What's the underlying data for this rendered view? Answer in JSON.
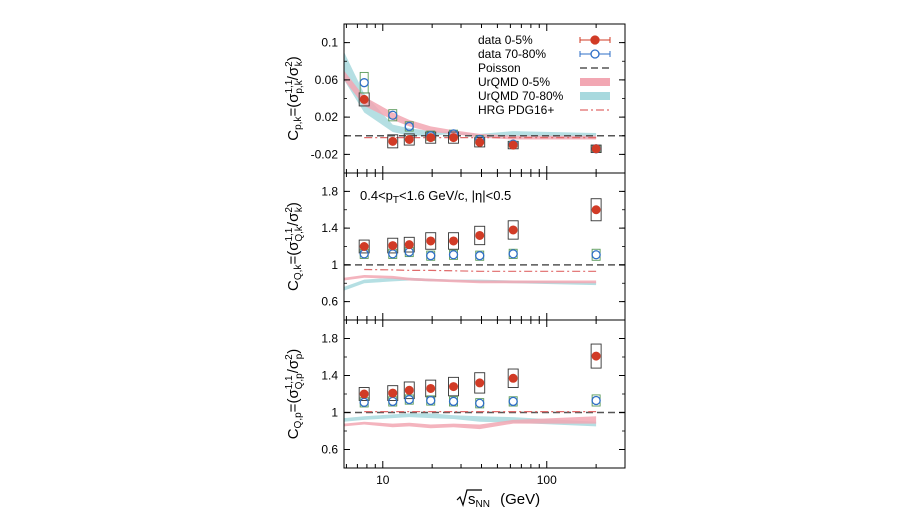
{
  "chart_data": {
    "type": "scatter",
    "x_axis": {
      "scale": "log",
      "xlim": [
        5.8,
        300
      ],
      "tick_labels": [
        "10",
        "100"
      ],
      "label_main": "s",
      "label_sub": "NN",
      "label_unit": "(GeV)"
    },
    "legend": {
      "placement": "top-right",
      "entries": [
        {
          "label": "data 0-5%",
          "kind": "marker-filled",
          "color": "#d13b26"
        },
        {
          "label": "data 70-80%",
          "kind": "marker-open",
          "color": "#2f6fc7"
        },
        {
          "label": "Poisson",
          "kind": "dashed",
          "color": "#555555"
        },
        {
          "label": "UrQMD 0-5%",
          "kind": "band",
          "color": "#f2a7b3"
        },
        {
          "label": "UrQMD 70-80%",
          "kind": "band",
          "color": "#a8d9de"
        },
        {
          "label": "HRG PDG16+",
          "kind": "dashdot",
          "color": "#e06a6a"
        }
      ]
    },
    "annotation": "0.4<p",
    "annotation_sub": "T",
    "annotation_rest": "<1.6 GeV/c, |η|<0.5",
    "panels": [
      {
        "ylabel_main": "C",
        "ylabel_sub": "p,k",
        "ylabel_eq": "=(σ",
        "ylabel_num_sup": "1,1",
        "ylabel_num_sub": "p,k",
        "ylabel_mid": "/σ",
        "ylabel_den_sup": "2",
        "ylabel_den_sub": "k",
        "ylabel_close": ")",
        "ylim": [
          -0.04,
          0.12
        ],
        "yticks": [
          -0.02,
          0.02,
          0.06,
          0.1
        ],
        "ytick_labels": [
          "-0.02",
          "0.02",
          "0.06",
          "0.1"
        ],
        "poisson": 0.0,
        "x": [
          7.7,
          11.5,
          14.5,
          19.6,
          27,
          39,
          62.4,
          200
        ],
        "central": [
          0.039,
          -0.006,
          -0.004,
          -0.002,
          -0.002,
          -0.007,
          -0.01,
          -0.014
        ],
        "central_sys": [
          0.007,
          0.007,
          0.006,
          0.006,
          0.006,
          0.005,
          0.004,
          0.004
        ],
        "peripheral": [
          0.057,
          0.022,
          0.01,
          0.0,
          0.002,
          -0.004,
          -0.009,
          -0.014
        ],
        "peripheral_sys": [
          0.011,
          0.006,
          0.005,
          0.005,
          0.004,
          0.004,
          0.003,
          0.003
        ],
        "urqmd_central": {
          "x": [
            5.8,
            7.7,
            11.5,
            14.5,
            19.6,
            27,
            39,
            62.4,
            200
          ],
          "low": [
            0.06,
            0.032,
            0.017,
            0.01,
            0.004,
            0.002,
            -0.002,
            -0.004,
            -0.004
          ],
          "high": [
            0.07,
            0.042,
            0.025,
            0.017,
            0.01,
            0.006,
            0.002,
            0.0,
            0.0
          ]
        },
        "urqmd_peripheral": {
          "x": [
            5.8,
            7.7,
            11.5,
            14.5,
            19.6,
            27,
            39,
            62.4,
            200
          ],
          "low": [
            0.06,
            0.025,
            0.004,
            0.0,
            0.0,
            0.002,
            -0.002,
            0.0,
            -0.003
          ],
          "high": [
            0.09,
            0.045,
            0.012,
            0.008,
            0.005,
            0.004,
            0.002,
            0.005,
            0.003
          ]
        },
        "hrg": {
          "x": [
            7.7,
            11.5,
            14.5,
            19.6,
            27,
            39,
            62.4,
            200
          ],
          "y": [
            -0.002,
            -0.002,
            -0.002,
            -0.002,
            -0.002,
            -0.002,
            -0.002,
            -0.002
          ]
        }
      },
      {
        "ylabel_main": "C",
        "ylabel_sub": "Q,k",
        "ylabel_eq": "=(σ",
        "ylabel_num_sup": "1,1",
        "ylabel_num_sub": "Q,k",
        "ylabel_mid": "/σ",
        "ylabel_den_sup": "2",
        "ylabel_den_sub": "k",
        "ylabel_close": ")",
        "ylim": [
          0.4,
          2.0
        ],
        "yticks": [
          0.6,
          1.0,
          1.4,
          1.8
        ],
        "ytick_labels": [
          "0.6",
          "1",
          "1.4",
          "1.8"
        ],
        "poisson": 1.0,
        "x": [
          7.7,
          11.5,
          14.5,
          19.6,
          27,
          39,
          62.4,
          200
        ],
        "central": [
          1.2,
          1.21,
          1.22,
          1.26,
          1.26,
          1.32,
          1.38,
          1.6
        ],
        "central_sys": [
          0.07,
          0.08,
          0.08,
          0.09,
          0.09,
          0.1,
          0.1,
          0.12
        ],
        "peripheral": [
          1.12,
          1.12,
          1.14,
          1.1,
          1.11,
          1.1,
          1.12,
          1.11
        ],
        "peripheral_sys": [
          0.05,
          0.05,
          0.05,
          0.05,
          0.05,
          0.05,
          0.05,
          0.06
        ],
        "urqmd_central": {
          "x": [
            5.8,
            7.7,
            11.5,
            14.5,
            19.6,
            27,
            39,
            62.4,
            200
          ],
          "low": [
            0.83,
            0.86,
            0.85,
            0.83,
            0.82,
            0.81,
            0.8,
            0.8,
            0.8
          ],
          "high": [
            0.86,
            0.89,
            0.88,
            0.86,
            0.85,
            0.84,
            0.83,
            0.83,
            0.83
          ]
        },
        "urqmd_peripheral": {
          "x": [
            5.8,
            7.7,
            11.5,
            14.5,
            19.6,
            27,
            39,
            62.4,
            200
          ],
          "low": [
            0.72,
            0.8,
            0.82,
            0.83,
            0.82,
            0.82,
            0.81,
            0.8,
            0.78
          ],
          "high": [
            0.76,
            0.84,
            0.86,
            0.86,
            0.85,
            0.84,
            0.84,
            0.83,
            0.81
          ]
        },
        "hrg": {
          "x": [
            7.7,
            11.5,
            14.5,
            19.6,
            27,
            39,
            62.4,
            200
          ],
          "y": [
            0.95,
            0.945,
            0.94,
            0.94,
            0.935,
            0.93,
            0.93,
            0.93
          ]
        }
      },
      {
        "ylabel_main": "C",
        "ylabel_sub": "Q,p",
        "ylabel_eq": "=(σ",
        "ylabel_num_sup": "1,1",
        "ylabel_num_sub": "Q,p",
        "ylabel_mid": "/σ",
        "ylabel_den_sup": "2",
        "ylabel_den_sub": "p",
        "ylabel_close": ")",
        "ylim": [
          0.4,
          2.0
        ],
        "yticks": [
          0.6,
          1.0,
          1.4,
          1.8
        ],
        "ytick_labels": [
          "0.6",
          "1",
          "1.4",
          "1.8"
        ],
        "poisson": 1.0,
        "x": [
          7.7,
          11.5,
          14.5,
          19.6,
          27,
          39,
          62.4,
          200
        ],
        "central": [
          1.2,
          1.21,
          1.24,
          1.26,
          1.28,
          1.32,
          1.37,
          1.61
        ],
        "central_sys": [
          0.07,
          0.08,
          0.09,
          0.09,
          0.1,
          0.11,
          0.1,
          0.13
        ],
        "peripheral": [
          1.11,
          1.12,
          1.14,
          1.13,
          1.12,
          1.1,
          1.12,
          1.13
        ],
        "peripheral_sys": [
          0.05,
          0.05,
          0.05,
          0.05,
          0.05,
          0.05,
          0.05,
          0.06
        ],
        "urqmd_central": {
          "x": [
            5.8,
            7.7,
            11.5,
            14.5,
            19.6,
            27,
            39,
            62.4,
            200
          ],
          "low": [
            0.85,
            0.87,
            0.84,
            0.85,
            0.83,
            0.84,
            0.82,
            0.88,
            0.88
          ],
          "high": [
            0.88,
            0.9,
            0.88,
            0.89,
            0.87,
            0.88,
            0.87,
            0.92,
            0.96
          ]
        },
        "urqmd_peripheral": {
          "x": [
            5.8,
            7.7,
            11.5,
            14.5,
            19.6,
            27,
            39,
            62.4,
            200
          ],
          "low": [
            0.9,
            0.92,
            0.94,
            0.95,
            0.94,
            0.93,
            0.9,
            0.89,
            0.85
          ],
          "high": [
            0.94,
            0.96,
            0.98,
            0.99,
            0.99,
            0.97,
            0.96,
            0.95,
            0.9
          ]
        },
        "hrg": {
          "x": [
            7.7,
            11.5,
            14.5,
            19.6,
            27,
            39,
            62.4,
            200
          ],
          "y": [
            1.01,
            1.01,
            1.01,
            1.01,
            1.01,
            1.01,
            1.01,
            1.01
          ]
        }
      }
    ]
  }
}
